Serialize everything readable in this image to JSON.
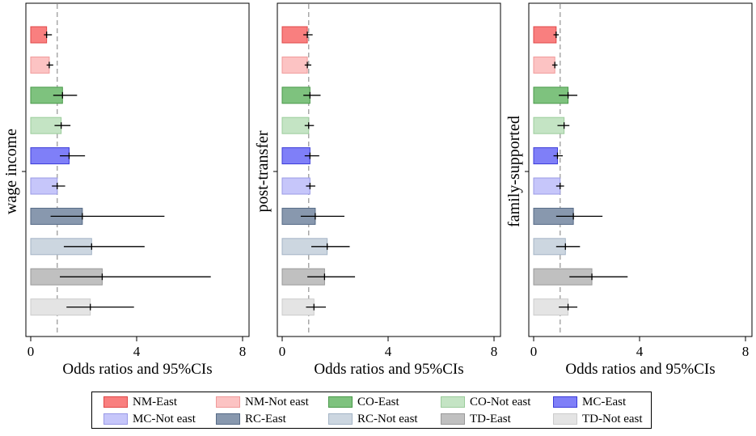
{
  "chart_data": [
    {
      "type": "bar",
      "orientation": "horizontal",
      "ylabel": "wage income",
      "xlabel": "Odds ratios and 95%CIs",
      "xlim": [
        0,
        8
      ],
      "xticks": [
        "0",
        "4",
        "8"
      ],
      "reference_line": 1,
      "categories": [
        "NM-East",
        "NM-Not east",
        "CO-East",
        "CO-Not east",
        "MC-East",
        "MC-Not east",
        "RC-East",
        "RC-Not east",
        "TD-East",
        "TD-Not east"
      ],
      "values": [
        0.6,
        0.7,
        1.2,
        1.15,
        1.45,
        1.0,
        1.95,
        2.3,
        2.7,
        2.25
      ],
      "ci_low": [
        0.5,
        0.6,
        0.85,
        0.9,
        1.1,
        0.8,
        0.75,
        1.25,
        1.1,
        1.35
      ],
      "ci_high": [
        0.8,
        0.85,
        1.75,
        1.5,
        2.05,
        1.3,
        5.05,
        4.3,
        6.8,
        3.9
      ]
    },
    {
      "type": "bar",
      "orientation": "horizontal",
      "ylabel": "post-transfer",
      "xlabel": "Odds ratios and 95%CIs",
      "xlim": [
        0,
        8
      ],
      "xticks": [
        "0",
        "4",
        "8"
      ],
      "reference_line": 1,
      "categories": [
        "NM-East",
        "NM-Not east",
        "CO-East",
        "CO-Not east",
        "MC-East",
        "MC-Not east",
        "RC-East",
        "RC-Not east",
        "TD-East",
        "TD-Not east"
      ],
      "values": [
        0.95,
        0.95,
        1.05,
        1.0,
        1.05,
        1.05,
        1.25,
        1.7,
        1.6,
        1.2
      ],
      "ci_low": [
        0.8,
        0.85,
        0.8,
        0.85,
        0.85,
        0.9,
        0.7,
        1.1,
        0.95,
        0.9
      ],
      "ci_high": [
        1.15,
        1.1,
        1.45,
        1.2,
        1.4,
        1.25,
        2.35,
        2.55,
        2.75,
        1.65
      ]
    },
    {
      "type": "bar",
      "orientation": "horizontal",
      "ylabel": "family-supported",
      "xlabel": "Odds ratios and 95%CIs",
      "xlim": [
        0,
        8
      ],
      "xticks": [
        "0",
        "4",
        "8"
      ],
      "reference_line": 1,
      "categories": [
        "NM-East",
        "NM-Not east",
        "CO-East",
        "CO-Not east",
        "MC-East",
        "MC-Not east",
        "RC-East",
        "RC-Not east",
        "TD-East",
        "TD-Not east"
      ],
      "values": [
        0.85,
        0.8,
        1.3,
        1.15,
        0.9,
        1.0,
        1.5,
        1.2,
        2.2,
        1.3
      ],
      "ci_low": [
        0.75,
        0.7,
        0.95,
        0.9,
        0.75,
        0.85,
        0.85,
        0.85,
        1.35,
        0.95
      ],
      "ci_high": [
        0.95,
        0.9,
        1.65,
        1.35,
        1.1,
        1.15,
        2.6,
        1.75,
        3.55,
        1.65
      ]
    }
  ],
  "legend": [
    {
      "label": "NM-East",
      "fill": "#f97f7f",
      "stroke": "#e04848"
    },
    {
      "label": "NM-Not east",
      "fill": "#fcc3c3",
      "stroke": "#f09a9a"
    },
    {
      "label": "CO-East",
      "fill": "#7ec27e",
      "stroke": "#4a9a4a"
    },
    {
      "label": "CO-Not east",
      "fill": "#c4e4c4",
      "stroke": "#9ccc9c"
    },
    {
      "label": "MC-East",
      "fill": "#7f7ff8",
      "stroke": "#3c3cd8"
    },
    {
      "label": "MC-Not east",
      "fill": "#c6c6fa",
      "stroke": "#9a9ae6"
    },
    {
      "label": "RC-East",
      "fill": "#8898ae",
      "stroke": "#566a86"
    },
    {
      "label": "RC-Not east",
      "fill": "#ccd6e0",
      "stroke": "#a4b4c6"
    },
    {
      "label": "TD-East",
      "fill": "#c0c0c0",
      "stroke": "#999999"
    },
    {
      "label": "TD-Not east",
      "fill": "#e4e4e4",
      "stroke": "#cccccc"
    }
  ]
}
